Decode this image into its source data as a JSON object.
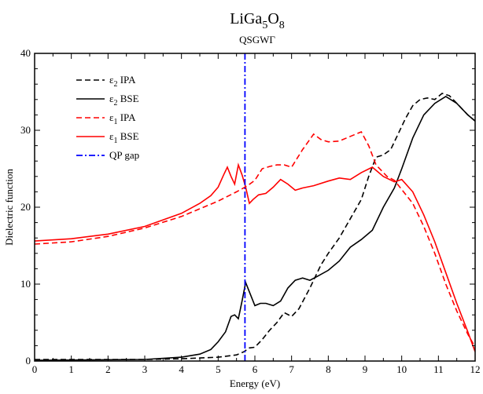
{
  "chart_data": {
    "type": "line",
    "title": {
      "main": "LiGa",
      "sub1": "5",
      "mid": "O",
      "sub2": "8"
    },
    "subtitle": "QSGWΓ",
    "xlabel": "Energy (eV)",
    "ylabel": "Dielectric function",
    "xlim": [
      0,
      12
    ],
    "ylim": [
      0,
      40
    ],
    "xticks": [
      0,
      1,
      2,
      3,
      4,
      5,
      6,
      7,
      8,
      9,
      10,
      11,
      12
    ],
    "yticks": [
      0,
      10,
      20,
      30,
      40
    ],
    "grid": false,
    "legend_position": "top-left",
    "series": [
      {
        "name": "ε2 IPA",
        "legend_symbol": "ε",
        "legend_sub": "2",
        "legend_rest": " IPA",
        "color": "#000000",
        "dash": "dashed",
        "x": [
          0,
          3.0,
          4.0,
          5.0,
          5.5,
          5.7,
          5.85,
          6.0,
          6.2,
          6.4,
          6.6,
          6.8,
          7.0,
          7.2,
          7.5,
          7.8,
          8.0,
          8.3,
          8.6,
          8.9,
          9.1,
          9.3,
          9.5,
          9.7,
          9.9,
          10.1,
          10.3,
          10.5,
          10.7,
          10.9,
          11.1,
          11.3,
          11.5,
          11.8,
          12.0
        ],
        "y": [
          0.2,
          0.2,
          0.3,
          0.5,
          0.8,
          1.2,
          1.7,
          1.8,
          2.8,
          4.0,
          5.0,
          6.3,
          5.8,
          6.8,
          9.5,
          12.5,
          14.0,
          16.0,
          18.5,
          21.0,
          24.0,
          26.5,
          26.8,
          27.5,
          29.5,
          31.5,
          33.2,
          34.0,
          34.2,
          34.0,
          34.8,
          34.5,
          33.5,
          32.0,
          31.2
        ]
      },
      {
        "name": "ε2 BSE",
        "legend_symbol": "ε",
        "legend_sub": "2",
        "legend_rest": " BSE",
        "color": "#000000",
        "dash": "solid",
        "x": [
          0,
          3.0,
          4.0,
          4.5,
          4.8,
          5.0,
          5.2,
          5.35,
          5.45,
          5.55,
          5.65,
          5.75,
          5.85,
          6.0,
          6.15,
          6.3,
          6.5,
          6.7,
          6.9,
          7.1,
          7.3,
          7.5,
          7.7,
          8.0,
          8.3,
          8.6,
          8.9,
          9.2,
          9.5,
          9.8,
          10.0,
          10.3,
          10.6,
          10.9,
          11.2,
          11.5,
          11.8,
          12.0
        ],
        "y": [
          0.1,
          0.2,
          0.5,
          0.9,
          1.5,
          2.5,
          3.8,
          5.8,
          6.0,
          5.5,
          7.8,
          10.2,
          9.0,
          7.2,
          7.5,
          7.5,
          7.2,
          7.8,
          9.5,
          10.5,
          10.8,
          10.5,
          11.0,
          11.8,
          13.0,
          14.8,
          15.8,
          17.0,
          20.0,
          22.5,
          25.0,
          29.0,
          32.0,
          33.5,
          34.4,
          33.5,
          32.0,
          31.2
        ]
      },
      {
        "name": "ε1 IPA",
        "legend_symbol": "ε",
        "legend_sub": "1",
        "legend_rest": " IPA",
        "color": "#ff0000",
        "dash": "dashed",
        "x": [
          0,
          1.0,
          2.0,
          3.0,
          4.0,
          4.5,
          5.0,
          5.5,
          5.8,
          6.0,
          6.2,
          6.4,
          6.6,
          6.8,
          7.0,
          7.3,
          7.6,
          7.8,
          8.0,
          8.3,
          8.6,
          8.9,
          9.1,
          9.3,
          9.6,
          9.8,
          10.0,
          10.3,
          10.6,
          10.9,
          11.2,
          11.5,
          11.8,
          12.0
        ],
        "y": [
          15.2,
          15.5,
          16.2,
          17.3,
          18.8,
          19.8,
          20.8,
          22.0,
          22.8,
          23.5,
          25.0,
          25.3,
          25.5,
          25.5,
          25.2,
          27.5,
          29.5,
          28.8,
          28.5,
          28.6,
          29.2,
          29.8,
          28.0,
          25.5,
          24.0,
          23.5,
          22.3,
          20.5,
          17.5,
          14.0,
          10.0,
          6.5,
          3.5,
          1.8
        ]
      },
      {
        "name": "ε1 BSE",
        "legend_symbol": "ε",
        "legend_sub": "1",
        "legend_rest": " BSE",
        "color": "#ff0000",
        "dash": "solid",
        "x": [
          0,
          1.0,
          2.0,
          3.0,
          4.0,
          4.5,
          4.8,
          5.0,
          5.15,
          5.25,
          5.35,
          5.45,
          5.55,
          5.65,
          5.75,
          5.85,
          5.95,
          6.1,
          6.3,
          6.5,
          6.7,
          6.9,
          7.1,
          7.3,
          7.6,
          8.0,
          8.3,
          8.6,
          8.9,
          9.2,
          9.5,
          9.8,
          10.0,
          10.3,
          10.6,
          10.9,
          11.2,
          11.5,
          11.8,
          12.0
        ],
        "y": [
          15.6,
          15.9,
          16.5,
          17.5,
          19.2,
          20.5,
          21.5,
          22.6,
          24.2,
          25.2,
          24.0,
          23.0,
          25.5,
          24.2,
          22.6,
          20.5,
          21.0,
          21.6,
          21.8,
          22.6,
          23.6,
          23.0,
          22.2,
          22.5,
          22.8,
          23.4,
          23.8,
          23.6,
          24.5,
          25.2,
          24.0,
          23.3,
          23.6,
          22.0,
          19.0,
          15.5,
          11.5,
          7.5,
          3.8,
          1.2
        ]
      },
      {
        "name": "QP gap",
        "legend_symbol": "",
        "legend_sub": "",
        "legend_rest": "QP gap",
        "color": "#0000ff",
        "dash": "dashdot",
        "x": [
          5.73,
          5.73
        ],
        "y": [
          0,
          40
        ]
      }
    ]
  }
}
